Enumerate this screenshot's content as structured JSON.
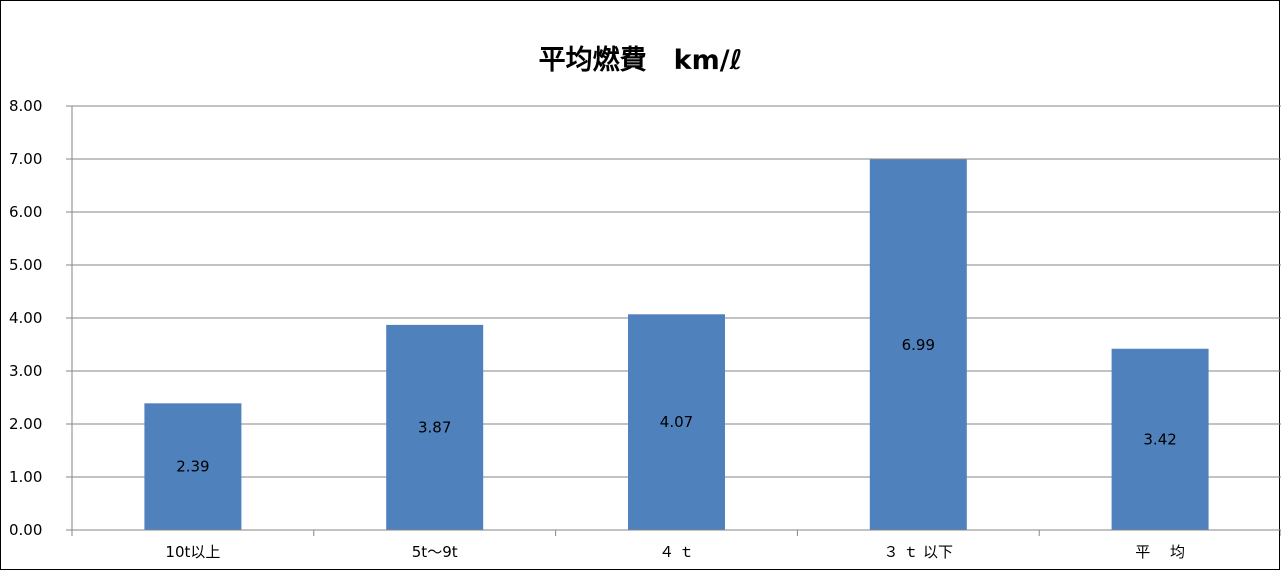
{
  "chart_data": {
    "type": "bar",
    "title": "平均燃費　km/ℓ",
    "categories": [
      "10t以上",
      "5t～9t",
      "４ ｔ",
      "３ ｔ 以下",
      "平　 均"
    ],
    "values": [
      2.39,
      3.87,
      4.07,
      6.99,
      3.42
    ],
    "data_labels": [
      "2.39",
      "3.87",
      "4.07",
      "6.99",
      "3.42"
    ],
    "ylim": [
      0,
      8
    ],
    "yticks": [
      0,
      1,
      2,
      3,
      4,
      5,
      6,
      7,
      8
    ],
    "ytick_labels": [
      "0.00",
      "1.00",
      "2.00",
      "3.00",
      "4.00",
      "5.00",
      "6.00",
      "7.00",
      "8.00"
    ],
    "xlabel": "",
    "ylabel": "",
    "grid": true,
    "legend": false,
    "bar_color": "#4f81bd",
    "grid_color": "#868686"
  }
}
